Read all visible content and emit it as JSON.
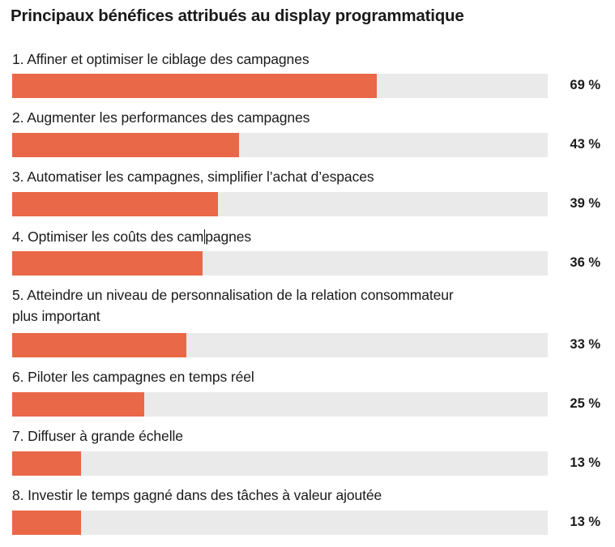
{
  "chart_data": {
    "type": "bar",
    "orientation": "horizontal",
    "title": "Principaux bénéfices attribués au display programmatique",
    "xlabel": "",
    "ylabel": "",
    "xlim": [
      0,
      100
    ],
    "unit": "%",
    "grid": false,
    "legend": "none",
    "colors": {
      "bar": "#E96847",
      "track": "#EAEAEA",
      "text": "#1A1A1A"
    },
    "categories": [
      "1. Affiner et optimiser le ciblage des campagnes",
      "2. Augmenter les performances des campagnes",
      "3. Automatiser les campagnes, simplifier l’achat d’espaces",
      "4. Optimiser les coûts des campagnes",
      "5. Atteindre un niveau de personnalisation de la relation consommateur plus important",
      "6. Piloter les campagnes en temps réel",
      "7. Diffuser à grande échelle",
      "8. Investir le temps gagné dans des tâches à valeur ajoutée"
    ],
    "values": [
      69,
      43,
      39,
      36,
      33,
      25,
      13,
      13
    ],
    "value_labels": [
      "69 %",
      "43 %",
      "39 %",
      "36 %",
      "33 %",
      "25 %",
      "13 %",
      "13 %"
    ],
    "label_parts": {
      "item4_before_caret": "4. Optimiser les coûts des cam",
      "item4_after_caret": "pagnes",
      "item5_line1": "5. Atteindre un niveau de personnalisation de la relation consommateur",
      "item5_line2": "plus important"
    }
  }
}
